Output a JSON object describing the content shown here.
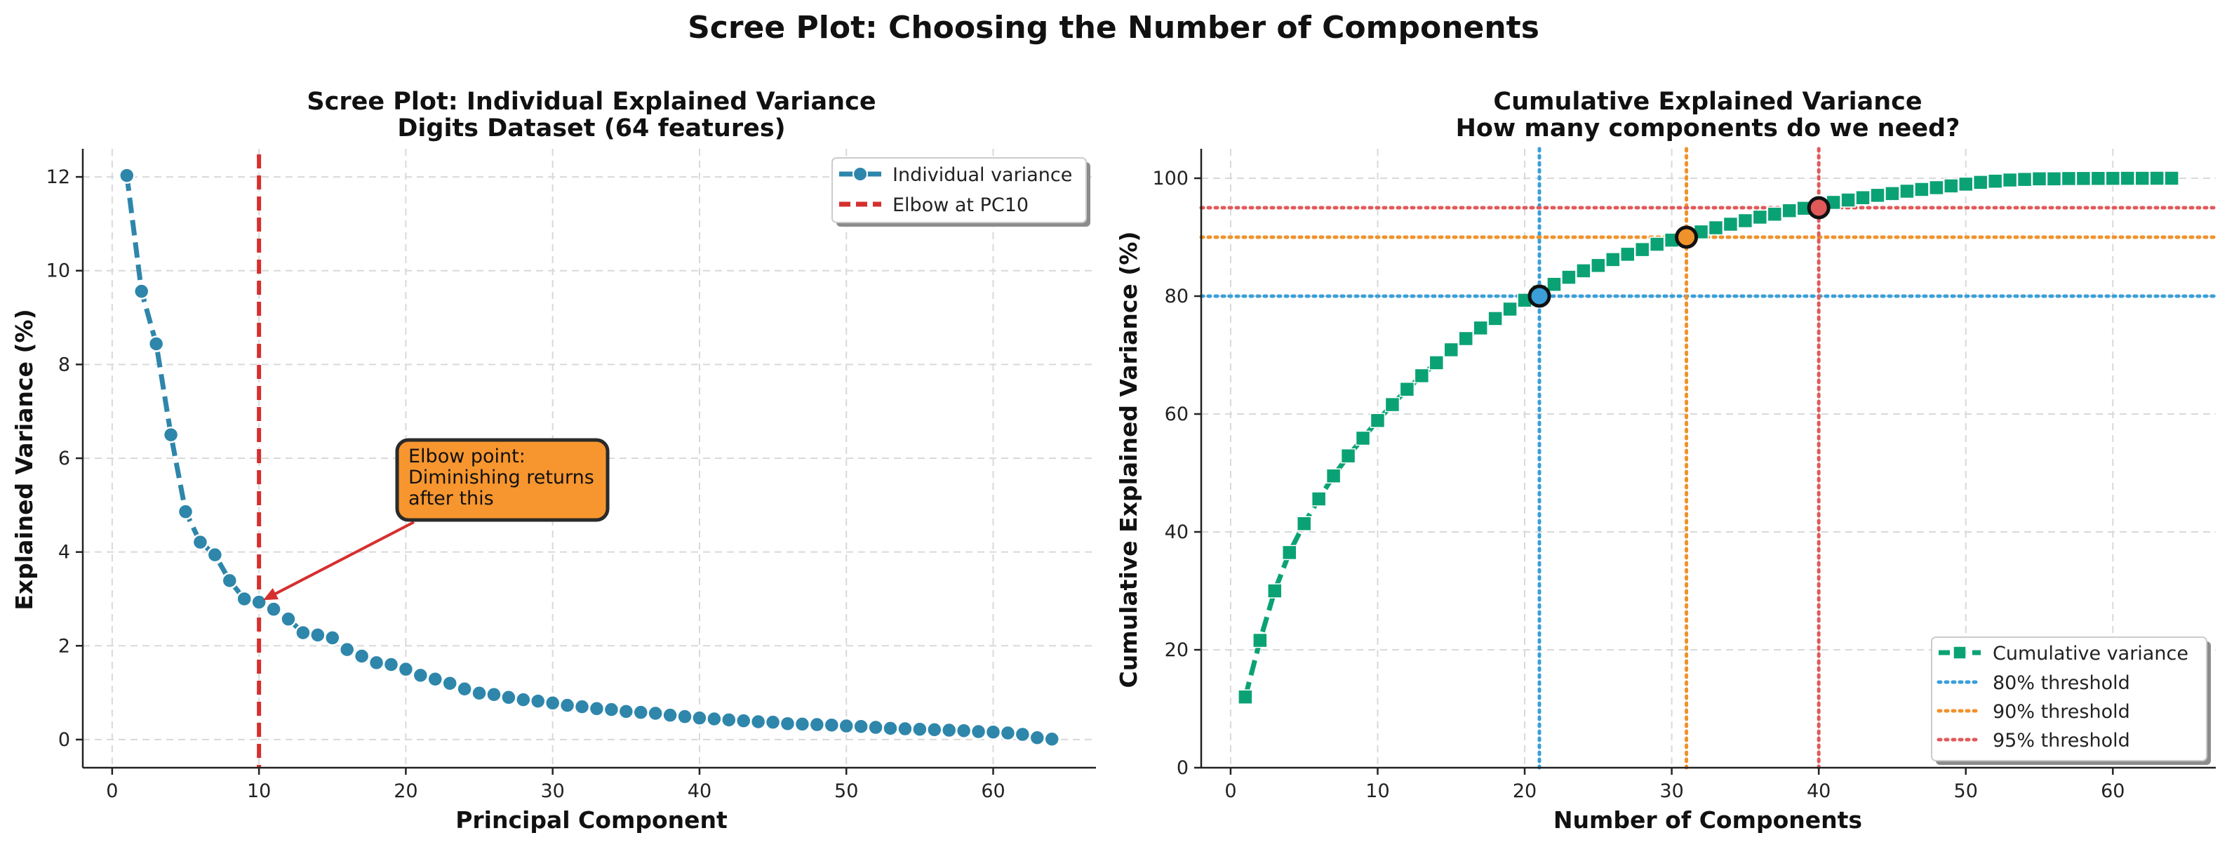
{
  "figure": {
    "suptitle": "Scree Plot: Choosing the Number of Components"
  },
  "colors": {
    "individual": "#2e86ab",
    "elbow": "#d62f2f",
    "cumulative": "#0aa274",
    "t80": "#3a9fd8",
    "t90": "#f0922b",
    "t95": "#e05a5a",
    "annotation_fill": "#f7962f"
  },
  "chart_data": [
    {
      "type": "line",
      "title_line1": "Scree Plot: Individual Explained Variance",
      "title_line2": "Digits Dataset (64 features)",
      "xlabel": "Principal Component",
      "ylabel": "Explained Variance (%)",
      "xlim": [
        -2,
        67
      ],
      "ylim": [
        -0.6,
        12.6
      ],
      "xticks": [
        "0",
        "10",
        "20",
        "30",
        "40",
        "50",
        "60"
      ],
      "yticks": [
        "0",
        "2",
        "4",
        "6",
        "8",
        "10",
        "12"
      ],
      "grid": true,
      "legend_position": "top-right",
      "series": [
        {
          "name": "Individual variance",
          "marker": "circle",
          "x": [
            1,
            2,
            3,
            4,
            5,
            6,
            7,
            8,
            9,
            10,
            11,
            12,
            13,
            14,
            15,
            16,
            17,
            18,
            19,
            20,
            21,
            22,
            23,
            24,
            25,
            26,
            27,
            28,
            29,
            30,
            31,
            32,
            33,
            34,
            35,
            36,
            37,
            38,
            39,
            40,
            41,
            42,
            43,
            44,
            45,
            46,
            47,
            48,
            49,
            50,
            51,
            52,
            53,
            54,
            55,
            56,
            57,
            58,
            59,
            60,
            61,
            62,
            63,
            64
          ],
          "values": [
            12.03,
            9.56,
            8.44,
            6.5,
            4.86,
            4.21,
            3.94,
            3.39,
            3.0,
            2.93,
            2.78,
            2.57,
            2.28,
            2.23,
            2.17,
            1.92,
            1.78,
            1.64,
            1.6,
            1.5,
            1.37,
            1.29,
            1.2,
            1.08,
            0.99,
            0.96,
            0.9,
            0.85,
            0.82,
            0.78,
            0.73,
            0.7,
            0.66,
            0.64,
            0.6,
            0.58,
            0.56,
            0.52,
            0.49,
            0.46,
            0.44,
            0.42,
            0.4,
            0.38,
            0.37,
            0.34,
            0.33,
            0.32,
            0.31,
            0.29,
            0.28,
            0.26,
            0.24,
            0.23,
            0.22,
            0.21,
            0.2,
            0.19,
            0.17,
            0.16,
            0.14,
            0.11,
            0.04,
            0.01
          ]
        },
        {
          "name": "Elbow at PC10",
          "style": "dashed-vertical",
          "x": 10
        }
      ],
      "annotation": {
        "text_lines": [
          "Elbow point:",
          "Diminishing returns",
          "after this"
        ],
        "point": [
          10,
          2.93
        ]
      }
    },
    {
      "type": "line",
      "title_line1": "Cumulative Explained Variance",
      "title_line2": "How many components do we need?",
      "xlabel": "Number of Components",
      "ylabel": "Cumulative Explained Variance (%)",
      "xlim": [
        -2,
        67
      ],
      "ylim": [
        0,
        105
      ],
      "xticks": [
        "0",
        "10",
        "20",
        "30",
        "40",
        "50",
        "60"
      ],
      "yticks": [
        "0",
        "20",
        "40",
        "60",
        "80",
        "100"
      ],
      "grid": true,
      "legend_position": "bottom-right",
      "series": [
        {
          "name": "Cumulative variance",
          "marker": "square",
          "x": [
            1,
            2,
            3,
            4,
            5,
            6,
            7,
            8,
            9,
            10,
            11,
            12,
            13,
            14,
            15,
            16,
            17,
            18,
            19,
            20,
            21,
            22,
            23,
            24,
            25,
            26,
            27,
            28,
            29,
            30,
            31,
            32,
            33,
            34,
            35,
            36,
            37,
            38,
            39,
            40,
            41,
            42,
            43,
            44,
            45,
            46,
            47,
            48,
            49,
            50,
            51,
            52,
            53,
            54,
            55,
            56,
            57,
            58,
            59,
            60,
            61,
            62,
            63,
            64
          ],
          "values": [
            12.0,
            21.6,
            30.0,
            36.5,
            41.4,
            45.6,
            49.5,
            52.9,
            55.9,
            58.9,
            61.6,
            64.2,
            66.5,
            68.7,
            70.9,
            72.8,
            74.6,
            76.2,
            77.8,
            79.3,
            80.7,
            82.0,
            83.2,
            84.3,
            85.2,
            86.2,
            87.1,
            87.9,
            88.8,
            89.5,
            90.2,
            90.9,
            91.6,
            92.2,
            92.8,
            93.4,
            93.9,
            94.5,
            94.9,
            95.4,
            95.9,
            96.3,
            96.7,
            97.1,
            97.4,
            97.8,
            98.1,
            98.4,
            98.7,
            99.0,
            99.3,
            99.5,
            99.7,
            99.8,
            99.9,
            99.9,
            99.95,
            99.96,
            99.97,
            99.98,
            99.99,
            99.99,
            100.0,
            100.0
          ]
        },
        {
          "name": "80% threshold",
          "style": "dotted",
          "y": 80,
          "x": 21
        },
        {
          "name": "90% threshold",
          "style": "dotted",
          "y": 90,
          "x": 31
        },
        {
          "name": "95% threshold",
          "style": "dotted",
          "y": 95,
          "x": 40
        }
      ]
    }
  ]
}
